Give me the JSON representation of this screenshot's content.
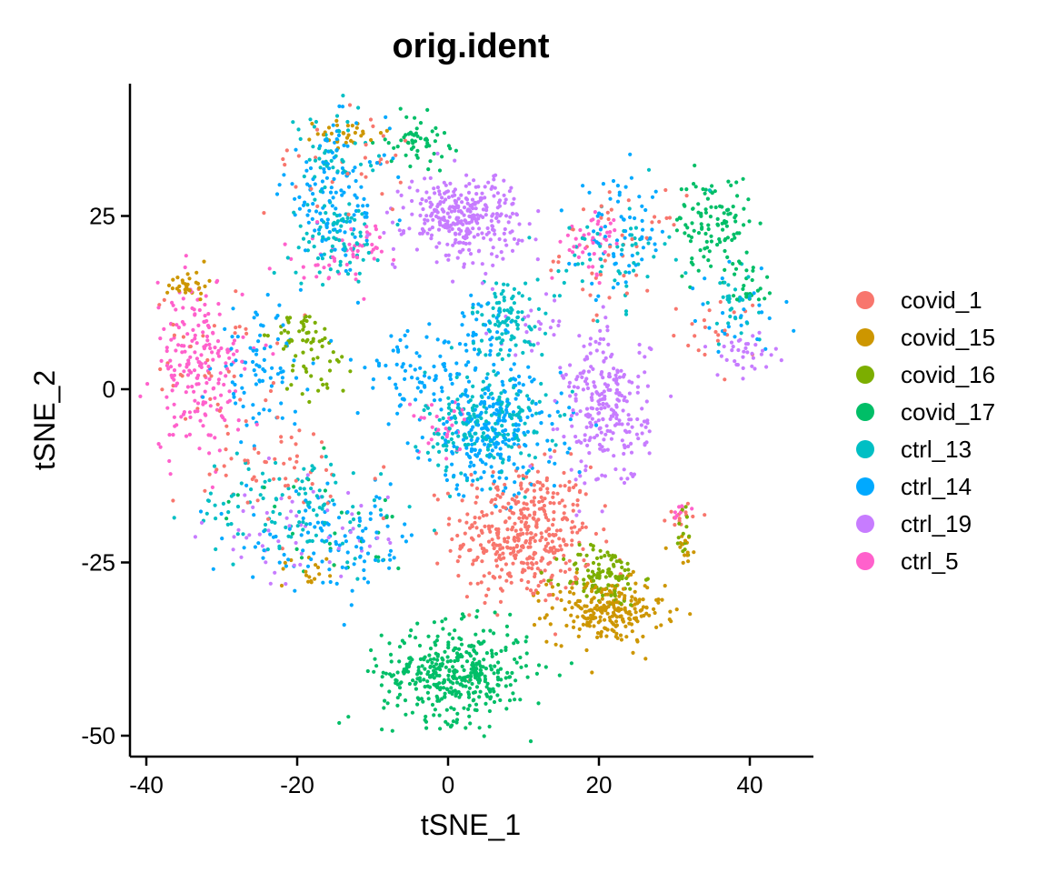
{
  "chart_data": {
    "type": "scatter",
    "title": "orig.ident",
    "xlabel": "tSNE_1",
    "ylabel": "tSNE_2",
    "xlim": [
      -41,
      48
    ],
    "ylim": [
      -53,
      44
    ],
    "x_ticks": [
      -40,
      -20,
      0,
      20,
      40
    ],
    "x_tick_labels": [
      "-40",
      "-20",
      "0",
      "20",
      "40"
    ],
    "y_ticks": [
      -50,
      -25,
      0,
      25
    ],
    "y_tick_labels": [
      "-50",
      "-25",
      "0",
      "25"
    ],
    "grid": false,
    "legend_position": "right",
    "series": [
      {
        "name": "covid_1",
        "color": "#F8766D",
        "clusters": [
          {
            "x": 10,
            "y": -21,
            "sx": 4.6,
            "sy": 5.0,
            "n": 420
          },
          {
            "x": 23,
            "y": 20,
            "sx": 4,
            "sy": 4,
            "n": 45
          },
          {
            "x": -22,
            "y": -12,
            "sx": 7,
            "sy": 4,
            "n": 55
          },
          {
            "x": -31,
            "y": 4,
            "sx": 4,
            "sy": 5,
            "n": 40
          },
          {
            "x": -14,
            "y": 33,
            "sx": 5,
            "sy": 4,
            "n": 30
          },
          {
            "x": 31,
            "y": -18,
            "sx": 1.0,
            "sy": 1.0,
            "n": 14
          },
          {
            "x": 36,
            "y": 8,
            "sx": 3,
            "sy": 3,
            "n": 20
          }
        ]
      },
      {
        "name": "covid_15",
        "color": "#CD9600",
        "clusters": [
          {
            "x": 21,
            "y": -32,
            "sx": 3.8,
            "sy": 2.3,
            "n": 240
          },
          {
            "x": -34.5,
            "y": 15,
            "sx": 1.3,
            "sy": 1.0,
            "n": 30
          },
          {
            "x": -13,
            "y": 37,
            "sx": 2.2,
            "sy": 1.0,
            "n": 30
          },
          {
            "x": 31,
            "y": -23,
            "sx": 1.2,
            "sy": 1.2,
            "n": 14
          },
          {
            "x": -18,
            "y": -26,
            "sx": 2.2,
            "sy": 1.5,
            "n": 18
          }
        ]
      },
      {
        "name": "covid_16",
        "color": "#7CAE00",
        "clusters": [
          {
            "x": 20.5,
            "y": -27,
            "sx": 2.6,
            "sy": 2.2,
            "n": 110
          },
          {
            "x": -19,
            "y": 8,
            "sx": 2.0,
            "sy": 1.5,
            "n": 45
          },
          {
            "x": -17,
            "y": 2,
            "sx": 2.5,
            "sy": 2,
            "n": 25
          },
          {
            "x": 31,
            "y": -20,
            "sx": 1.0,
            "sy": 2.5,
            "n": 14
          }
        ]
      },
      {
        "name": "covid_17",
        "color": "#00BE67",
        "clusters": [
          {
            "x": 1,
            "y": -41,
            "sx": 4.8,
            "sy": 3.4,
            "n": 420
          },
          {
            "x": 35,
            "y": 24,
            "sx": 2.5,
            "sy": 3.5,
            "n": 110
          },
          {
            "x": -4,
            "y": 36,
            "sx": 2.0,
            "sy": 1.8,
            "n": 55
          },
          {
            "x": 40,
            "y": 15,
            "sx": 1.5,
            "sy": 2,
            "n": 25
          },
          {
            "x": -17,
            "y": -20,
            "sx": 6,
            "sy": 4,
            "n": 30
          }
        ]
      },
      {
        "name": "ctrl_13",
        "color": "#00BFC4",
        "clusters": [
          {
            "x": 5,
            "y": -5,
            "sx": 4,
            "sy": 4,
            "n": 190
          },
          {
            "x": 8,
            "y": 10,
            "sx": 2.5,
            "sy": 3,
            "n": 100
          },
          {
            "x": -15,
            "y": 22,
            "sx": 3,
            "sy": 3,
            "n": 85
          },
          {
            "x": -20,
            "y": -17,
            "sx": 7,
            "sy": 4,
            "n": 110
          },
          {
            "x": 22,
            "y": 20,
            "sx": 3.5,
            "sy": 4,
            "n": 55
          },
          {
            "x": -16,
            "y": 34,
            "sx": 3,
            "sy": 3,
            "n": 45
          },
          {
            "x": 38,
            "y": 12,
            "sx": 3,
            "sy": 3,
            "n": 30
          }
        ]
      },
      {
        "name": "ctrl_14",
        "color": "#00A9FF",
        "clusters": [
          {
            "x": 6,
            "y": -6,
            "sx": 4.5,
            "sy": 4.5,
            "n": 270
          },
          {
            "x": -15,
            "y": 28,
            "sx": 3.5,
            "sy": 5,
            "n": 130
          },
          {
            "x": -25,
            "y": 3,
            "sx": 3,
            "sy": 4,
            "n": 85
          },
          {
            "x": -5,
            "y": 2,
            "sx": 3.5,
            "sy": 3,
            "n": 70
          },
          {
            "x": 23,
            "y": 22,
            "sx": 3,
            "sy": 4,
            "n": 70
          },
          {
            "x": -15,
            "y": -22,
            "sx": 6,
            "sy": 3.5,
            "n": 110
          },
          {
            "x": 4,
            "y": 8,
            "sx": 3,
            "sy": 3,
            "n": 45
          },
          {
            "x": 38,
            "y": 10,
            "sx": 3,
            "sy": 3,
            "n": 30
          }
        ]
      },
      {
        "name": "ctrl_19",
        "color": "#C77CFF",
        "clusters": [
          {
            "x": 2,
            "y": 25,
            "sx": 3.8,
            "sy": 3.0,
            "n": 320
          },
          {
            "x": 21,
            "y": -3,
            "sx": 2.8,
            "sy": 5.5,
            "n": 260
          },
          {
            "x": 39,
            "y": 5,
            "sx": 2.5,
            "sy": 1.5,
            "n": 35
          },
          {
            "x": -20,
            "y": -21,
            "sx": 6,
            "sy": 4,
            "n": 55
          },
          {
            "x": 12,
            "y": 9,
            "sx": 3,
            "sy": 2,
            "n": 22
          }
        ]
      },
      {
        "name": "ctrl_5",
        "color": "#FF61CC",
        "clusters": [
          {
            "x": -33,
            "y": 3,
            "sx": 3,
            "sy": 6,
            "n": 210
          },
          {
            "x": 19,
            "y": 21,
            "sx": 2,
            "sy": 2.5,
            "n": 45
          },
          {
            "x": -11,
            "y": 21,
            "sx": 2,
            "sy": 1.5,
            "n": 30
          },
          {
            "x": -1,
            "y": -5,
            "sx": 2,
            "sy": 2,
            "n": 30
          },
          {
            "x": -17,
            "y": 18,
            "sx": 2.5,
            "sy": 2,
            "n": 25
          },
          {
            "x": 31,
            "y": -17,
            "sx": 1,
            "sy": 1,
            "n": 8
          }
        ]
      }
    ]
  }
}
